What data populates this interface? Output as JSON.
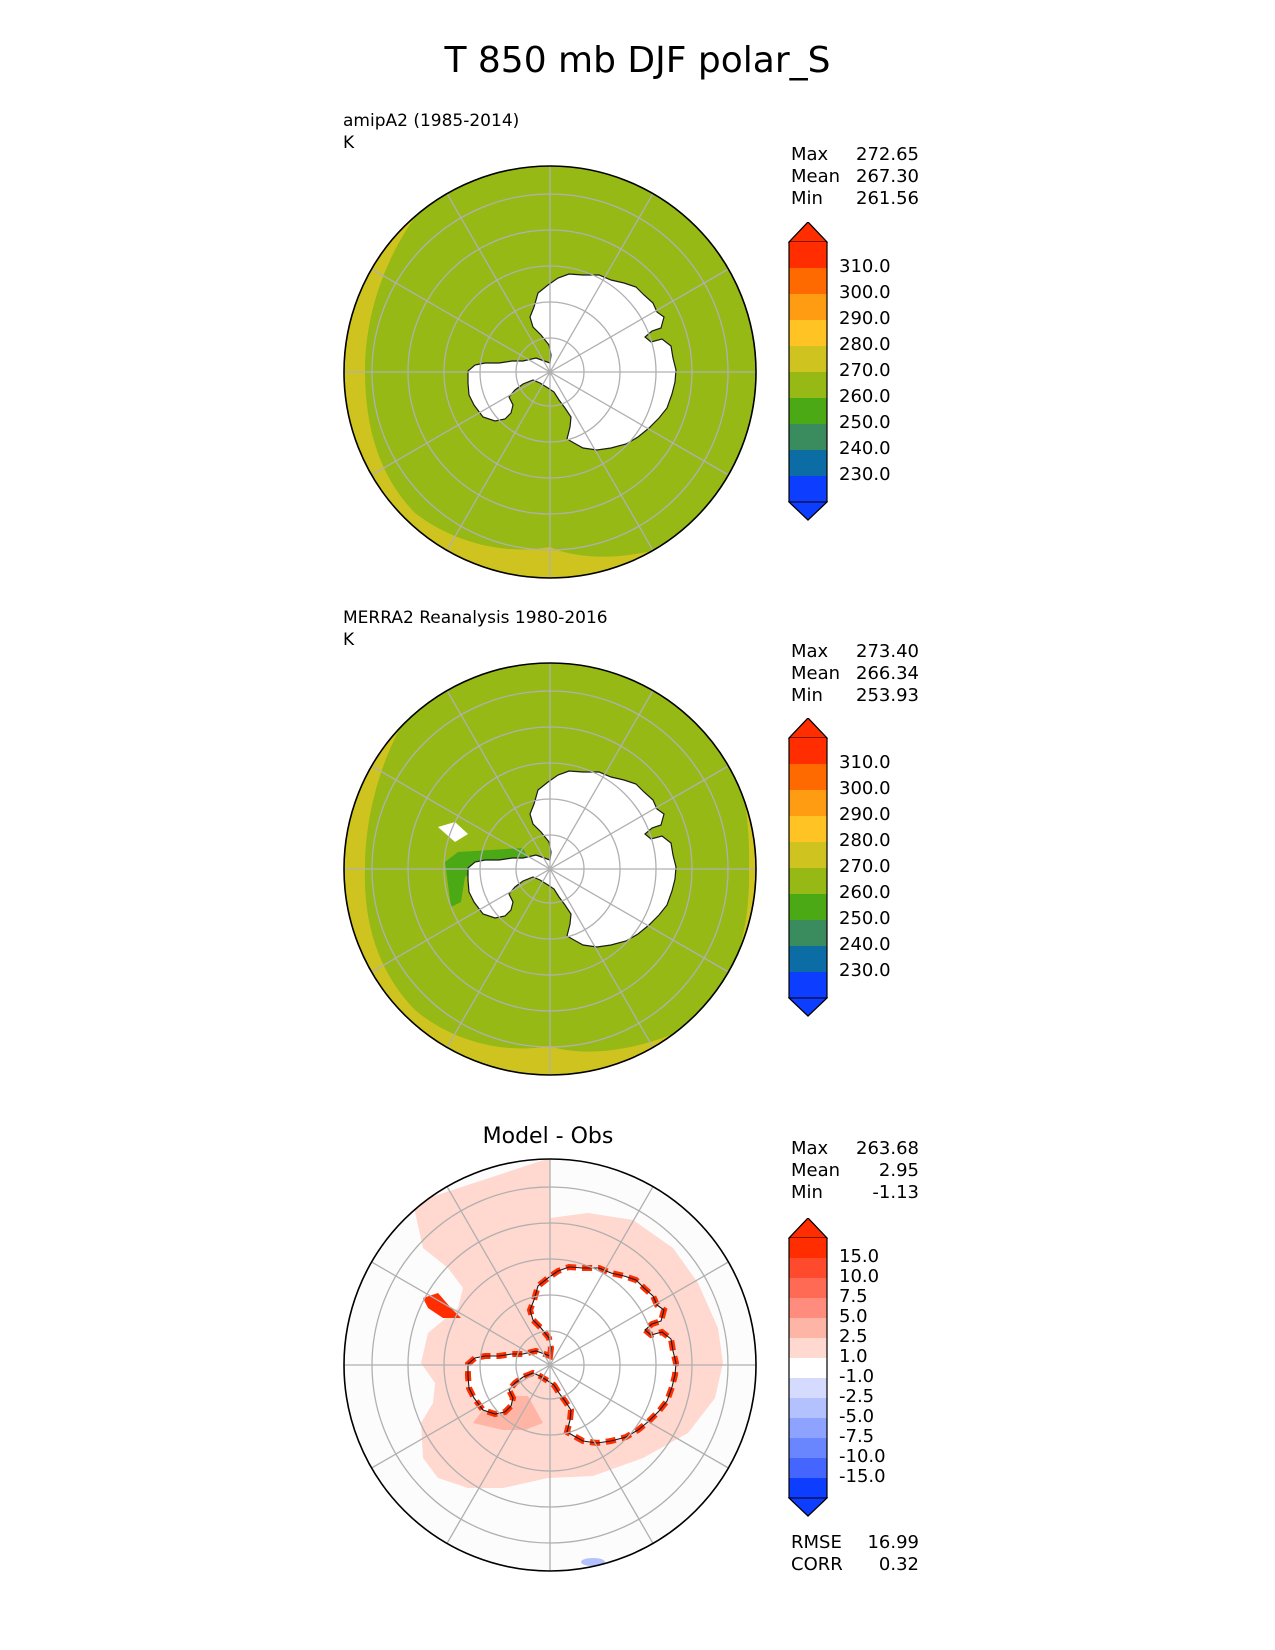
{
  "figure": {
    "title": "T 850 mb DJF polar_S"
  },
  "panels": {
    "model": {
      "title": "amipA2 (1985-2014)",
      "units": "K",
      "stats": {
        "max_label": "Max",
        "max": "272.65",
        "mean_label": "Mean",
        "mean": "267.30",
        "min_label": "Min",
        "min": "261.56"
      }
    },
    "obs": {
      "title": "MERRA2 Reanalysis 1980-2016",
      "units": "K",
      "stats": {
        "max_label": "Max",
        "max": "273.40",
        "mean_label": "Mean",
        "mean": "266.34",
        "min_label": "Min",
        "min": "253.93"
      }
    },
    "diff": {
      "title": "Model - Obs",
      "stats": {
        "max_label": "Max",
        "max": "263.68",
        "mean_label": "Mean",
        "mean": "2.95",
        "min_label": "Min",
        "min": "-1.13"
      },
      "metrics": {
        "rmse_label": "RMSE",
        "rmse": "16.99",
        "corr_label": "CORR",
        "corr": "0.32"
      }
    }
  },
  "colorbars": {
    "temperature": {
      "ticks": [
        "310.0",
        "300.0",
        "290.0",
        "280.0",
        "270.0",
        "260.0",
        "250.0",
        "240.0",
        "230.0"
      ],
      "colors": [
        "#ff2d00",
        "#ff6a00",
        "#ff9c12",
        "#ffc424",
        "#cfc41f",
        "#96b915",
        "#4ba916",
        "#3a8c5f",
        "#0c6ca4",
        "#0d3dff"
      ]
    },
    "difference": {
      "ticks": [
        "15.0",
        "10.0",
        "7.5",
        "5.0",
        "2.5",
        "1.0",
        "-1.0",
        "-2.5",
        "-5.0",
        "-7.5",
        "-10.0",
        "-15.0"
      ],
      "colors": [
        "#ff2d00",
        "#ff4a2e",
        "#ff6a55",
        "#ff8c7c",
        "#ffb5a6",
        "#ffd8cf",
        "#ffffff",
        "#d4dbff",
        "#b3c1ff",
        "#8ea3ff",
        "#6a86ff",
        "#4466ff",
        "#0d3dff"
      ]
    }
  },
  "chart_data": [
    {
      "type": "heatmap",
      "title": "amipA2 (1985-2014)",
      "units": "K",
      "projection": "south polar stereographic",
      "max": 272.65,
      "mean": 267.3,
      "min": 261.56,
      "levels": [
        230,
        240,
        250,
        260,
        270,
        280,
        290,
        300,
        310
      ],
      "regions": [
        {
          "area": "ocean ring",
          "range": "260-270"
        },
        {
          "area": "outer edge (northern boundary)",
          "range": "270-280"
        },
        {
          "area": "Antarctic interior",
          "range": "masked"
        }
      ]
    },
    {
      "type": "heatmap",
      "title": "MERRA2 Reanalysis 1980-2016",
      "units": "K",
      "projection": "south polar stereographic",
      "max": 273.4,
      "mean": 266.34,
      "min": 253.93,
      "levels": [
        230,
        240,
        250,
        260,
        270,
        280,
        290,
        300,
        310
      ],
      "regions": [
        {
          "area": "ocean ring",
          "range": "260-270"
        },
        {
          "area": "outer edge (northern boundary)",
          "range": "270-280"
        },
        {
          "area": "Antarctic Peninsula / ice shelves",
          "range": "250-260"
        },
        {
          "area": "Antarctic interior",
          "range": "masked"
        }
      ]
    },
    {
      "type": "heatmap",
      "title": "Model - Obs",
      "projection": "south polar stereographic",
      "max": 263.68,
      "mean": 2.95,
      "min": -1.13,
      "rmse": 16.99,
      "corr": 0.32,
      "levels": [
        -15,
        -10,
        -7.5,
        -5,
        -2.5,
        -1,
        1,
        2.5,
        5,
        7.5,
        10,
        15
      ],
      "regions": [
        {
          "area": "circumpolar band 55-70S",
          "range": "1.0-2.5"
        },
        {
          "area": "Antarctic coastline",
          "range": ">15"
        },
        {
          "area": "elsewhere",
          "range": "-1.0-1.0"
        }
      ]
    }
  ]
}
